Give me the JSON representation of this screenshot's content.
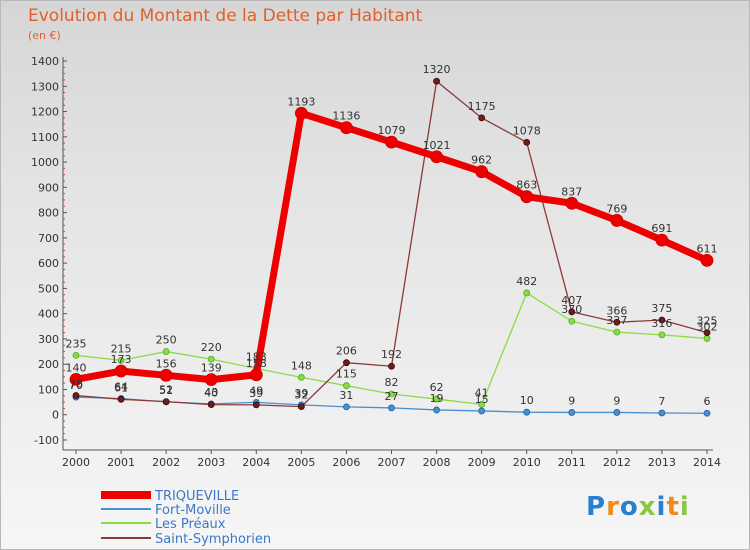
{
  "header": {
    "title": "Evolution du Montant de la Dette par Habitant",
    "subtitle": "(en €)"
  },
  "logo": {
    "text": "Proxiti",
    "colors": [
      "#2a7fd0",
      "#f08a1c",
      "#2a7fd0",
      "#8cc63f",
      "#2a7fd0",
      "#f08a1c",
      "#8cc63f"
    ]
  },
  "chart_data": {
    "type": "line",
    "title": "Evolution du Montant de la Dette par Habitant",
    "ylabel": "(en €)",
    "xlabel": "",
    "x": [
      "2000",
      "2001",
      "2002",
      "2003",
      "2004",
      "2005",
      "2006",
      "2007",
      "2008",
      "2009",
      "2010",
      "2011",
      "2012",
      "2013",
      "2014"
    ],
    "ylim": [
      -100,
      1400
    ],
    "yticks": [
      -100,
      0,
      100,
      200,
      300,
      400,
      500,
      600,
      700,
      800,
      900,
      1000,
      1100,
      1200,
      1300,
      1400
    ],
    "grid": false,
    "legend_position": "bottom-left",
    "series": [
      {
        "name": "TRIQUEVILLE",
        "color": "#ee0000",
        "values": [
          140,
          173,
          156,
          139,
          158,
          1193,
          1136,
          1079,
          1021,
          962,
          863,
          837,
          769,
          691,
          611
        ]
      },
      {
        "name": "Fort-Moville",
        "color": "#4a90d0",
        "values": [
          70,
          64,
          51,
          43,
          49,
          39,
          31,
          27,
          19,
          15,
          10,
          9,
          9,
          7,
          6
        ]
      },
      {
        "name": "Les Préaux",
        "color": "#88dd44",
        "values": [
          235,
          215,
          250,
          220,
          183,
          148,
          115,
          82,
          62,
          41,
          482,
          370,
          327,
          316,
          302
        ]
      },
      {
        "name": "Saint-Symphorien",
        "color": "#6b1f1f",
        "values": [
          76,
          61,
          52,
          40,
          39,
          32,
          206,
          192,
          1320,
          1175,
          1078,
          407,
          366,
          375,
          325
        ]
      }
    ]
  }
}
